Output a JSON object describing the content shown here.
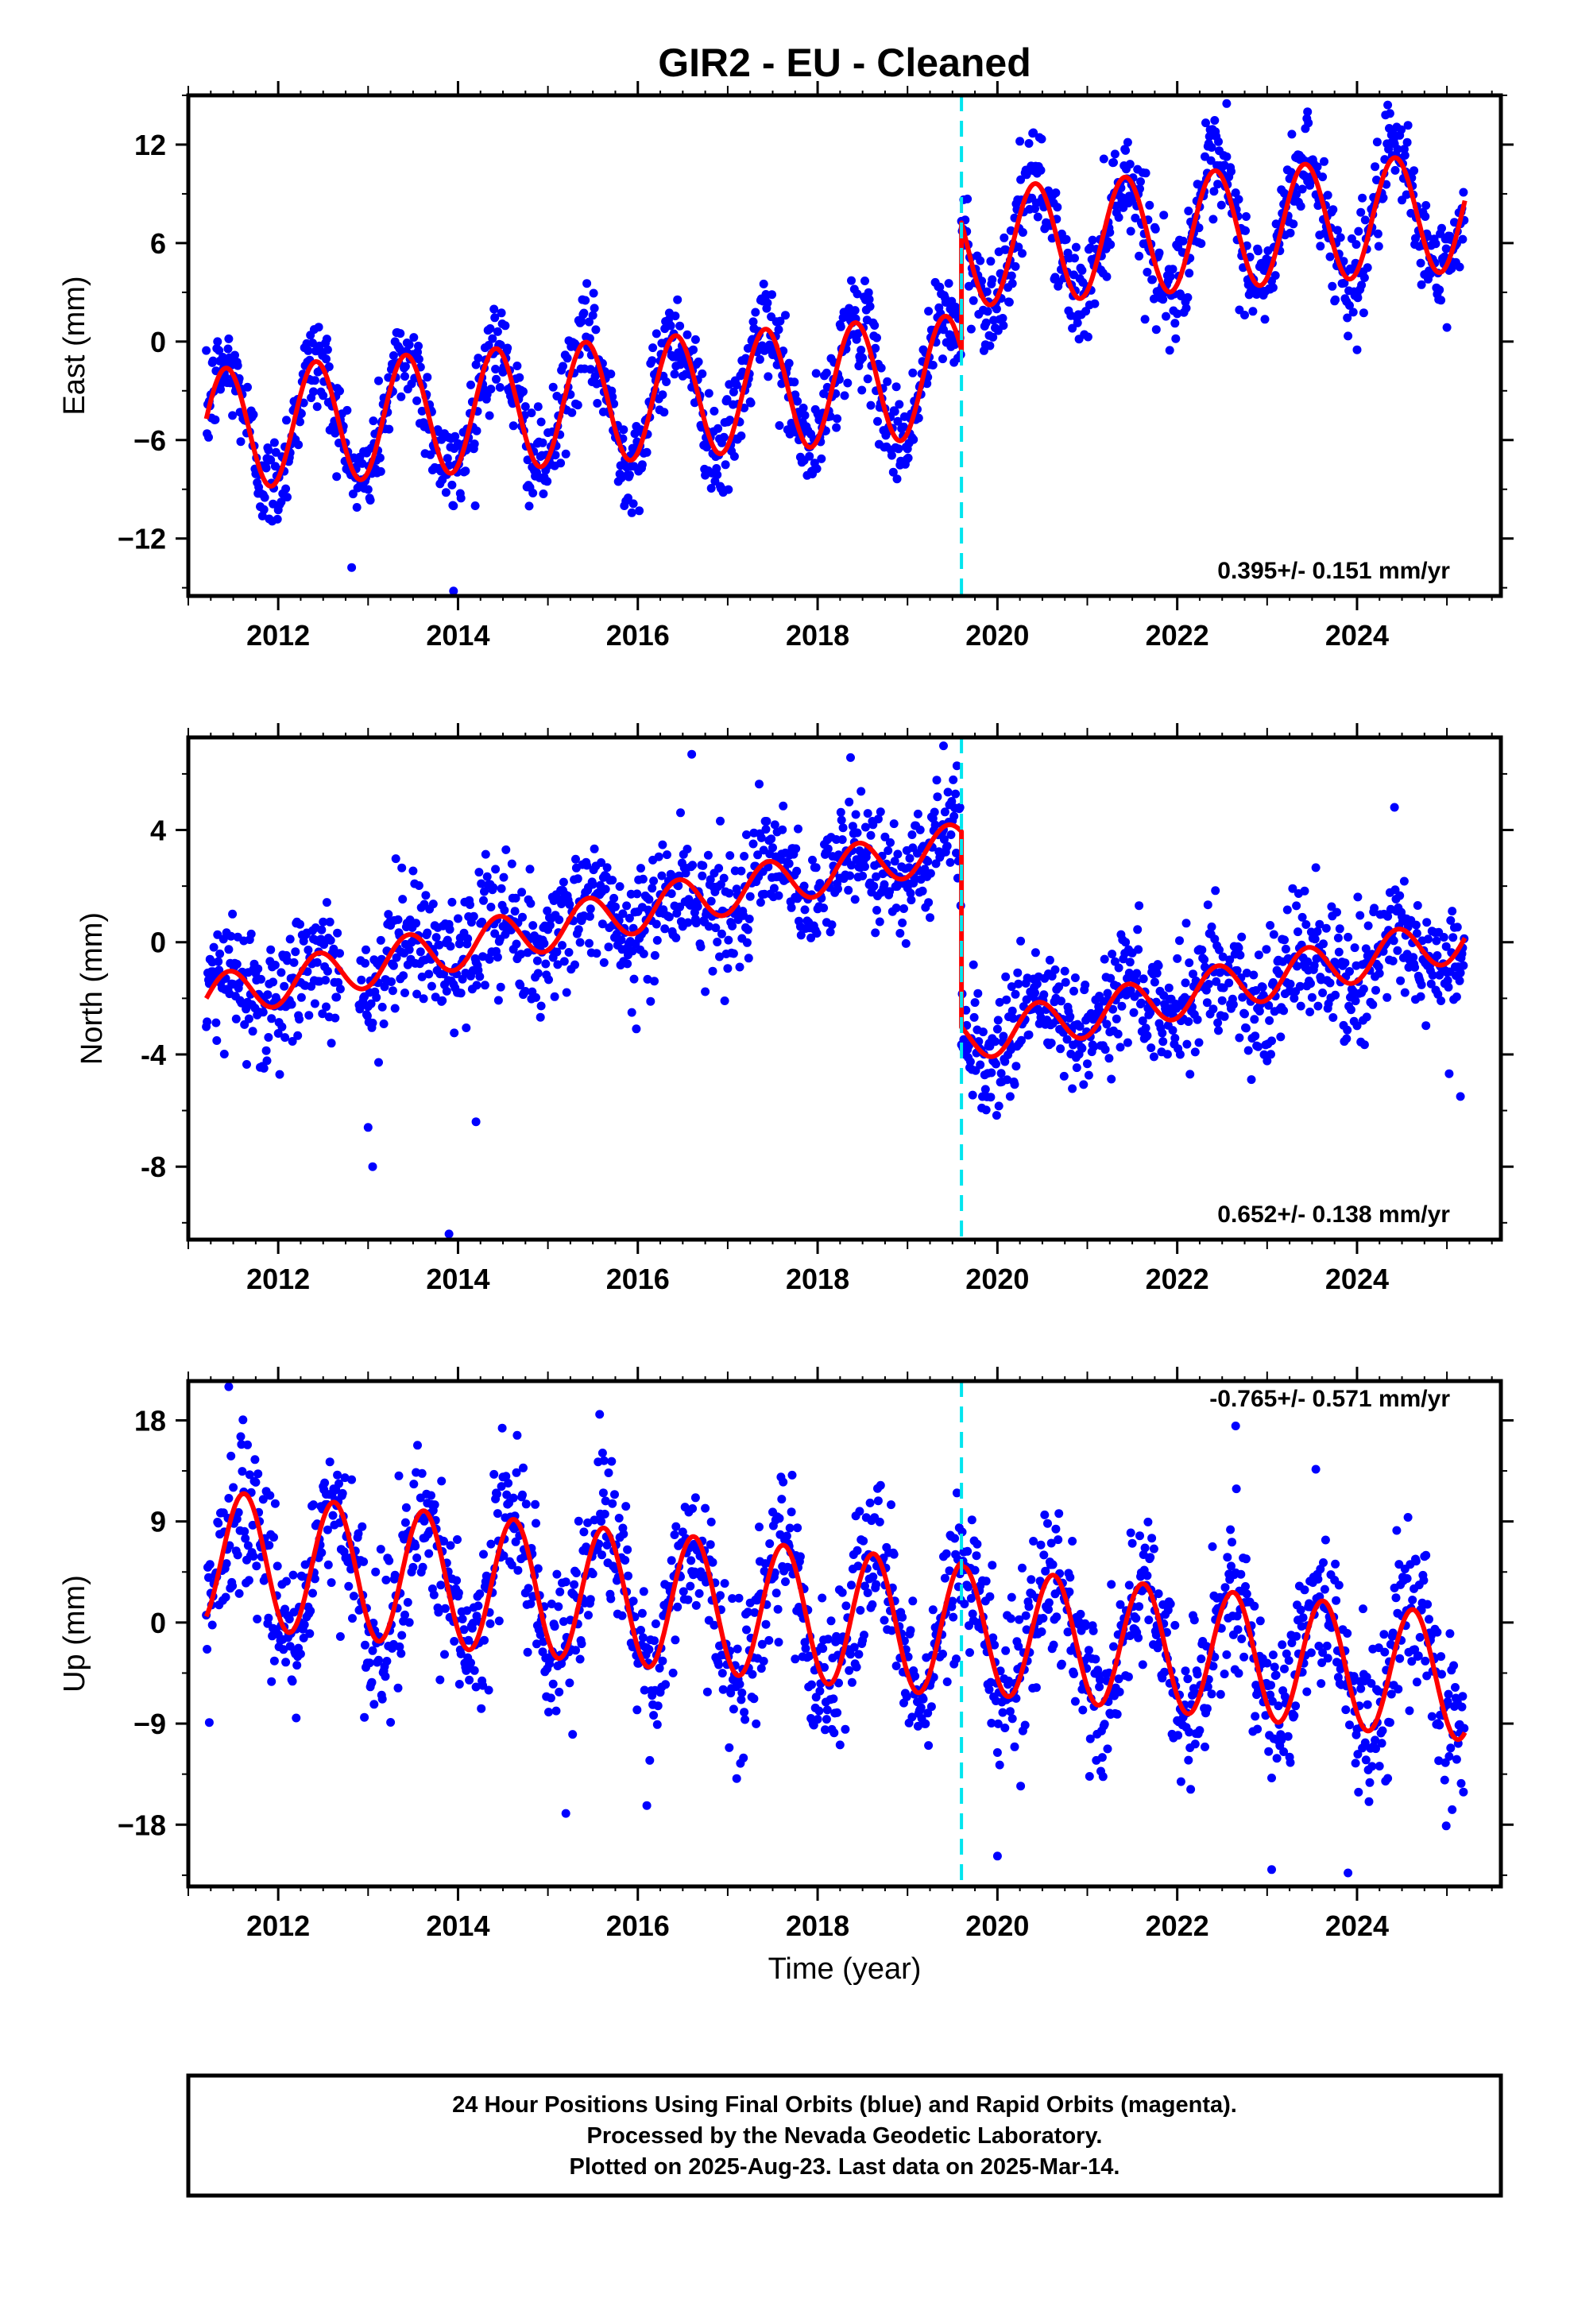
{
  "chart_data": [
    {
      "type": "scatter",
      "panel": "east",
      "title": "GIR2  - EU - Cleaned",
      "ylabel": "East (mm)",
      "xlabel": "",
      "xlim": [
        2011.0,
        2025.6
      ],
      "ylim": [
        -15.5,
        15.0
      ],
      "yticks": [
        -12,
        -6,
        0,
        6,
        12
      ],
      "xticks": [
        2012,
        2014,
        2016,
        2018,
        2020,
        2022,
        2024
      ],
      "offset_year": 2019.6,
      "rate_label": "0.395+/- 0.151 mm/yr",
      "model": {
        "pre": {
          "start": 2011.2,
          "end": 2019.6,
          "intercept": -5.4,
          "slope": 0.395,
          "amplitude": 3.7,
          "phase_peak": 0.42
        },
        "post": {
          "start": 2019.6,
          "end": 2025.2,
          "intercept": 5.7,
          "slope": 0.395,
          "amplitude": 3.6,
          "phase_peak": 0.42
        }
      },
      "scatter_spread": 1.5,
      "outliers": [
        [
          2013.95,
          -15.2
        ],
        [
          2022.55,
          14.5
        ],
        [
          2023.45,
          14.0
        ],
        [
          2024.0,
          -0.5
        ]
      ]
    },
    {
      "type": "scatter",
      "panel": "north",
      "title": "",
      "ylabel": "North (mm)",
      "xlabel": "",
      "xlim": [
        2011.0,
        2025.6
      ],
      "ylim": [
        -10.6,
        7.3
      ],
      "yticks": [
        -8,
        -4,
        0,
        4
      ],
      "xticks": [
        2012,
        2014,
        2016,
        2018,
        2020,
        2022,
        2024
      ],
      "offset_year": 2019.6,
      "rate_label": "0.652+/- 0.138 mm/yr",
      "model": {
        "pre": {
          "start": 2011.2,
          "end": 2019.6,
          "intercept": -2.0,
          "slope": 0.652,
          "amplitude": 0.8,
          "phase_peak": 0.45
        },
        "post": {
          "start": 2019.6,
          "end": 2025.2,
          "intercept": -3.5,
          "slope": 0.652,
          "amplitude": 0.8,
          "phase_peak": 0.45
        }
      },
      "scatter_spread": 1.1,
      "outliers": [
        [
          2013.0,
          -6.6
        ],
        [
          2013.05,
          -8.0
        ],
        [
          2013.9,
          -10.4
        ],
        [
          2014.2,
          -6.4
        ],
        [
          2016.6,
          6.7
        ],
        [
          2025.15,
          -5.5
        ],
        [
          2019.4,
          7.0
        ]
      ]
    },
    {
      "type": "scatter",
      "panel": "up",
      "title": "",
      "ylabel": "Up (mm)",
      "xlabel": "Time (year)",
      "xlim": [
        2011.0,
        2025.6
      ],
      "ylim": [
        -23.5,
        21.5
      ],
      "yticks": [
        -18,
        -9,
        0,
        9,
        18
      ],
      "xticks": [
        2012,
        2014,
        2016,
        2018,
        2020,
        2022,
        2024
      ],
      "offset_year": 2019.6,
      "rate_label": "-0.765+/- 0.571 mm/yr",
      "model": {
        "pre": {
          "start": 2011.2,
          "end": 2019.6,
          "intercept": 5.8,
          "slope": -0.765,
          "amplitude": 6.0,
          "phase_peak": 0.62
        },
        "post": {
          "start": 2019.6,
          "end": 2025.2,
          "intercept": -0.6,
          "slope": -0.765,
          "amplitude": 5.6,
          "phase_peak": 0.62
        }
      },
      "scatter_spread": 3.6,
      "outliers": [
        [
          2011.45,
          21.0
        ],
        [
          2012.2,
          -8.5
        ],
        [
          2015.2,
          -17.0
        ],
        [
          2016.1,
          -16.3
        ],
        [
          2020.0,
          -20.8
        ],
        [
          2023.05,
          -22.0
        ],
        [
          2023.9,
          -22.3
        ],
        [
          2022.65,
          17.5
        ]
      ]
    }
  ],
  "colors": {
    "data_points": "#0000ff",
    "model_line": "#ff0000",
    "offset_line": "#00e5ee",
    "frame": "#000000"
  },
  "footer": {
    "line1": "24 Hour Positions Using Final Orbits (blue) and Rapid Orbits (magenta).",
    "line2": "Processed by the Nevada Geodetic Laboratory.",
    "line3": "Plotted on 2025-Aug-23. Last data on 2025-Mar-14."
  }
}
